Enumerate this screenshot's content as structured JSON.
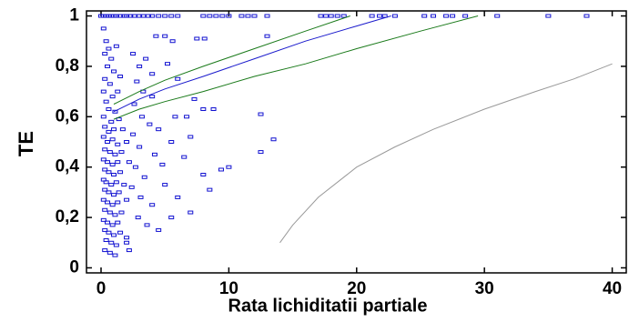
{
  "chart_data": {
    "type": "scatter",
    "xlabel": "Rata lichiditatii partiale",
    "ylabel": "TE",
    "xlim": [
      -1.14,
      41.1
    ],
    "ylim": [
      -0.02,
      1.02
    ],
    "xticks": [
      0,
      10,
      20,
      30,
      40
    ],
    "yticks": [
      0,
      {
        "value": 0.2,
        "label": "0,2"
      },
      {
        "value": 0.4,
        "label": "0,4"
      },
      {
        "value": 0.6,
        "label": "0,6"
      },
      {
        "value": 0.8,
        "label": "0,8"
      },
      1
    ],
    "series": [
      {
        "mode": "markers",
        "color": "#1010d0",
        "x": [
          0,
          0.2,
          0.4,
          0.6,
          0.8,
          1,
          1.2,
          1.5,
          1.8,
          2,
          2.3,
          2.6,
          3,
          3.3,
          3.7,
          4,
          4.5,
          5,
          5.5,
          6,
          8,
          8.5,
          9,
          9.5,
          10,
          11,
          11.5,
          12,
          13,
          17.2,
          17.6,
          18,
          18.5,
          19,
          21.2,
          21.8,
          22.2,
          23,
          25.3,
          26,
          27,
          27.5,
          28.5,
          31,
          35,
          38,
          0.2,
          0.4,
          0.3,
          0.6,
          0.8,
          1.2,
          0.5,
          1,
          0.3,
          0.7,
          1.5,
          0.2,
          0.9,
          1.3,
          0.4,
          0.6,
          1.1,
          0.2,
          0.8,
          1.4,
          0.3,
          0.6,
          1,
          1.7,
          0.2,
          0.5,
          0.9,
          1.3,
          2,
          0.3,
          0.7,
          1.1,
          1.6,
          0.2,
          0.5,
          0.9,
          1.3,
          2.2,
          0.3,
          0.6,
          1,
          1.5,
          0.2,
          0.4,
          0.8,
          1.2,
          1.8,
          0.3,
          0.6,
          1,
          1.4,
          0.2,
          0.5,
          0.9,
          1.3,
          2,
          0.3,
          0.7,
          1.1,
          1.6,
          0.2,
          0.5,
          0.9,
          1.3,
          0.3,
          0.6,
          1,
          1.5,
          0.4,
          0.8,
          1.2,
          2,
          0.3,
          0.7,
          1.1,
          2.2,
          2.5,
          3,
          2.8,
          3.5,
          4,
          2.6,
          3.2,
          3.8,
          4.5,
          2.5,
          3,
          4.2,
          2.7,
          3.4,
          4.8,
          2.4,
          3.1,
          4,
          2.9,
          3.6,
          5.5,
          4.3,
          5,
          5.6,
          7.5,
          8.1,
          13,
          5.2,
          6,
          6.7,
          7.3,
          8,
          8.8,
          12.5,
          12.5,
          13.5,
          9.4,
          10,
          8,
          7,
          8.5,
          5.5,
          6.5,
          5,
          6,
          4.5,
          2,
          5.8,
          7,
          4,
          3.3
        ],
        "values": [
          1,
          1,
          1,
          1,
          1,
          1,
          1,
          1,
          1,
          1,
          1,
          1,
          1,
          1,
          1,
          1,
          1,
          1,
          1,
          1,
          1,
          1,
          1,
          1,
          1,
          1,
          1,
          1,
          1,
          1,
          1,
          1,
          1,
          1,
          1,
          1,
          1,
          1,
          1,
          1,
          1,
          1,
          1,
          1,
          1,
          1,
          0.95,
          0.9,
          0.85,
          0.87,
          0.83,
          0.88,
          0.8,
          0.78,
          0.75,
          0.73,
          0.76,
          0.7,
          0.68,
          0.7,
          0.66,
          0.63,
          0.62,
          0.6,
          0.58,
          0.59,
          0.56,
          0.54,
          0.55,
          0.55,
          0.52,
          0.5,
          0.51,
          0.49,
          0.5,
          0.47,
          0.46,
          0.45,
          0.46,
          0.43,
          0.42,
          0.41,
          0.42,
          0.42,
          0.39,
          0.38,
          0.37,
          0.38,
          0.35,
          0.34,
          0.33,
          0.34,
          0.33,
          0.31,
          0.3,
          0.29,
          0.3,
          0.27,
          0.26,
          0.25,
          0.26,
          0.27,
          0.23,
          0.22,
          0.21,
          0.22,
          0.19,
          0.18,
          0.17,
          0.18,
          0.15,
          0.14,
          0.13,
          0.14,
          0.11,
          0.1,
          0.09,
          0.1,
          0.07,
          0.06,
          0.05,
          0.07,
          0.85,
          0.8,
          0.74,
          0.83,
          0.77,
          0.65,
          0.6,
          0.57,
          0.55,
          0.53,
          0.48,
          0.45,
          0.4,
          0.36,
          0.41,
          0.32,
          0.28,
          0.25,
          0.2,
          0.17,
          0.2,
          0.92,
          0.92,
          0.9,
          0.91,
          0.91,
          0.92,
          0.81,
          0.75,
          0.6,
          0.67,
          0.63,
          0.63,
          0.61,
          0.46,
          0.51,
          0.39,
          0.4,
          0.37,
          0.22,
          0.31,
          0.5,
          0.44,
          0.33,
          0.28,
          0.15,
          0.12,
          0.6,
          0.52,
          0.68,
          0.7
        ]
      },
      {
        "mode": "line",
        "color": "#1a1acc",
        "x": [
          1,
          3,
          5,
          8,
          12,
          16,
          20,
          22.7
        ],
        "values": [
          0.62,
          0.67,
          0.71,
          0.76,
          0.83,
          0.9,
          0.96,
          1.0
        ]
      },
      {
        "mode": "line",
        "color": "#1a7a1a",
        "x": [
          1,
          3,
          5,
          8,
          12,
          16,
          19.5
        ],
        "values": [
          0.65,
          0.7,
          0.745,
          0.8,
          0.87,
          0.94,
          1.0
        ]
      },
      {
        "mode": "line",
        "color": "#1a7a1a",
        "x": [
          1,
          3,
          5,
          8,
          12,
          16,
          20,
          25,
          29.5
        ],
        "values": [
          0.59,
          0.63,
          0.66,
          0.7,
          0.76,
          0.81,
          0.87,
          0.94,
          1.0
        ]
      },
      {
        "mode": "line",
        "color": "#999999",
        "x": [
          14,
          15,
          17,
          20,
          23,
          26,
          30,
          34,
          37,
          40
        ],
        "values": [
          0.1,
          0.17,
          0.28,
          0.4,
          0.48,
          0.55,
          0.63,
          0.7,
          0.75,
          0.81
        ]
      }
    ]
  }
}
